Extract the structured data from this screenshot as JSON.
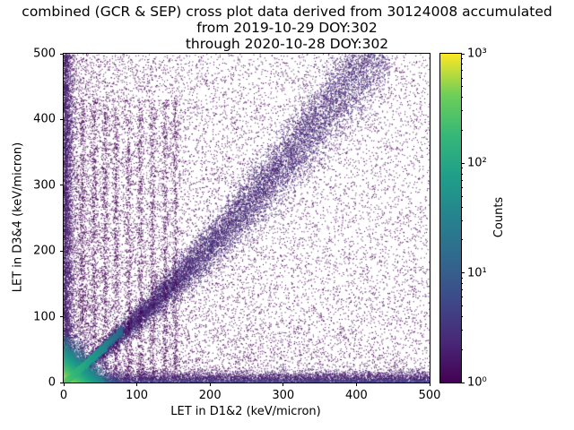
{
  "title": {
    "line1": "combined (GCR & SEP) cross plot data derived from 30124008 accumulated",
    "line2": "from 2019-10-29 DOY:302",
    "line3": "through 2020-10-28 DOY:302"
  },
  "axes": {
    "xlabel": "LET in D1&2 (keV/micron)",
    "ylabel": "LET in D3&4 (keV/micron)",
    "xticks": [
      0,
      100,
      200,
      300,
      400,
      500
    ],
    "yticks": [
      0,
      100,
      200,
      300,
      400,
      500
    ],
    "xlim": [
      0,
      500
    ],
    "ylim": [
      0,
      500
    ]
  },
  "colorbar": {
    "label": "Counts",
    "tick_labels": [
      "10⁰",
      "10¹",
      "10²",
      "10³"
    ],
    "tick_exponents": [
      0,
      1,
      2,
      3
    ],
    "scale": "log",
    "range": [
      1,
      1000
    ],
    "colormap": "viridis",
    "stops": [
      "#440154",
      "#482878",
      "#3e4989",
      "#31688e",
      "#26828e",
      "#1f9e89",
      "#35b779",
      "#6ece58",
      "#fde725"
    ]
  },
  "chart_data": {
    "type": "heatmap",
    "title": "combined (GCR & SEP) cross plot data derived from 30124008 accumulated\nfrom 2019-10-29 DOY:302\nthrough 2020-10-28 DOY:302",
    "xlabel": "LET in D1&2 (keV/micron)",
    "ylabel": "LET in D3&4 (keV/micron)",
    "xlim": [
      0,
      500
    ],
    "ylim": [
      0,
      500
    ],
    "grid": false,
    "color_scale": {
      "type": "log",
      "min": 1,
      "max": 1000,
      "label": "Counts",
      "colormap": "viridis"
    },
    "seed": 20191029,
    "features": [
      {
        "type": "background",
        "n": 15000,
        "x_pow": 1.8,
        "y_pow": 1.3,
        "count": 1
      },
      {
        "type": "background",
        "n": 2600,
        "x_pow": 1.0,
        "y_pow": 1.0,
        "count": 1
      },
      {
        "type": "diagonal_band",
        "n": 17000,
        "x_max": 445,
        "curve_a": 0.9,
        "curve_b": 0.0007,
        "sigma0": 2,
        "sigma1": 40,
        "t_pow": 1.25,
        "count": 2
      },
      {
        "type": "vertical_stripes",
        "xs": [
          25,
          41,
          56,
          71,
          88,
          104,
          121,
          138,
          152
        ],
        "n_each": 520,
        "sigma": 2.2,
        "y_max": 430,
        "y_pow": 1.1,
        "count": 1
      },
      {
        "type": "bottom_band",
        "n": 6000,
        "y_sigma": 8,
        "x_pow": 0.85,
        "count": 2
      },
      {
        "type": "left_band",
        "n": 3200,
        "x_sigma": 6,
        "y_pow": 1.05,
        "count": 2
      },
      {
        "type": "origin_hotspot",
        "n": 14000,
        "scale": 13,
        "peak_count": 1000,
        "falloff": 16
      },
      {
        "type": "bright_diagonal",
        "n": 3500,
        "length": 80,
        "peak_count": 300,
        "jitter": 2
      }
    ]
  }
}
